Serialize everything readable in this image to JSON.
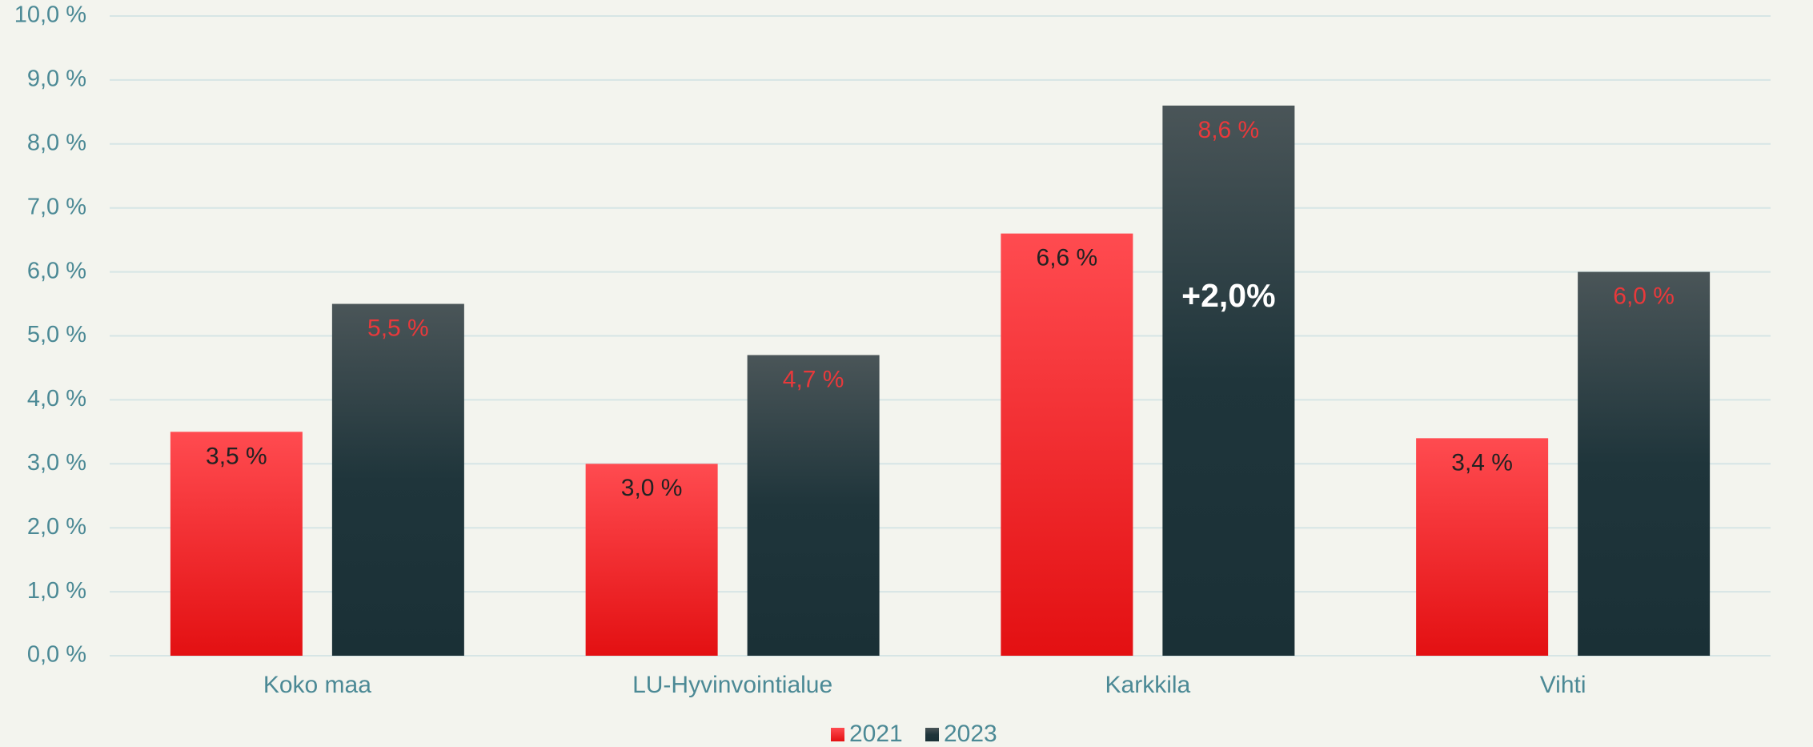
{
  "chart_data": {
    "type": "bar",
    "categories": [
      "Koko maa",
      "LU-Hyvinvointialue",
      "Karkkila",
      "Vihti"
    ],
    "series": [
      {
        "name": "2021",
        "color": "#f51c1f",
        "values": [
          3.5,
          3.0,
          6.6,
          3.4
        ],
        "value_labels": [
          "3,5 %",
          "3,0 %",
          "6,6 %",
          "3,4 %"
        ]
      },
      {
        "name": "2023",
        "color": "#1c3339",
        "values": [
          5.5,
          4.7,
          8.6,
          6.0
        ],
        "value_labels": [
          "5,5 %",
          "4,7 %",
          "8,6 %",
          "6,0 %"
        ]
      }
    ],
    "ylim": [
      0,
      10
    ],
    "yticks": [
      {
        "value": 0,
        "label": "0,0 %"
      },
      {
        "value": 1,
        "label": "1,0 %"
      },
      {
        "value": 2,
        "label": "2,0 %"
      },
      {
        "value": 3,
        "label": "3,0 %"
      },
      {
        "value": 4,
        "label": "4,0 %"
      },
      {
        "value": 5,
        "label": "5,0 %"
      },
      {
        "value": 6,
        "label": "6,0 %"
      },
      {
        "value": 7,
        "label": "7,0 %"
      },
      {
        "value": 8,
        "label": "8,0 %"
      },
      {
        "value": 9,
        "label": "9,0 %"
      },
      {
        "value": 10,
        "label": "10,0 %"
      }
    ],
    "grid": true,
    "legend": "bottom",
    "annotation": "+2,0%"
  }
}
